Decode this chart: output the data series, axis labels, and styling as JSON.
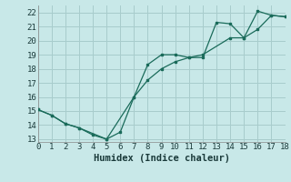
{
  "line1_x": [
    0,
    1,
    2,
    3,
    4,
    5,
    6,
    7,
    8,
    9,
    10,
    11,
    12,
    13,
    14,
    15,
    16,
    17,
    18
  ],
  "line1_y": [
    15.1,
    14.7,
    14.1,
    13.8,
    13.3,
    13.0,
    13.5,
    16.0,
    18.3,
    19.0,
    19.0,
    18.8,
    18.8,
    21.3,
    21.2,
    20.2,
    22.1,
    21.8,
    21.7
  ],
  "line2_x": [
    0,
    1,
    2,
    3,
    5,
    7,
    8,
    9,
    10,
    11,
    12,
    14,
    15,
    16,
    17,
    18
  ],
  "line2_y": [
    15.1,
    14.7,
    14.1,
    13.8,
    13.0,
    16.0,
    17.2,
    18.0,
    18.5,
    18.8,
    19.0,
    20.2,
    20.2,
    20.8,
    21.8,
    21.7
  ],
  "color": "#1a6b5a",
  "bg_color": "#c8e8e8",
  "grid_color": "#a8cccc",
  "xlabel": "Humidex (Indice chaleur)",
  "xlim": [
    0,
    18
  ],
  "ylim": [
    12.8,
    22.5
  ],
  "xticks": [
    0,
    1,
    2,
    3,
    4,
    5,
    6,
    7,
    8,
    9,
    10,
    11,
    12,
    13,
    14,
    15,
    16,
    17,
    18
  ],
  "yticks": [
    13,
    14,
    15,
    16,
    17,
    18,
    19,
    20,
    21,
    22
  ],
  "label_fontsize": 7.5
}
